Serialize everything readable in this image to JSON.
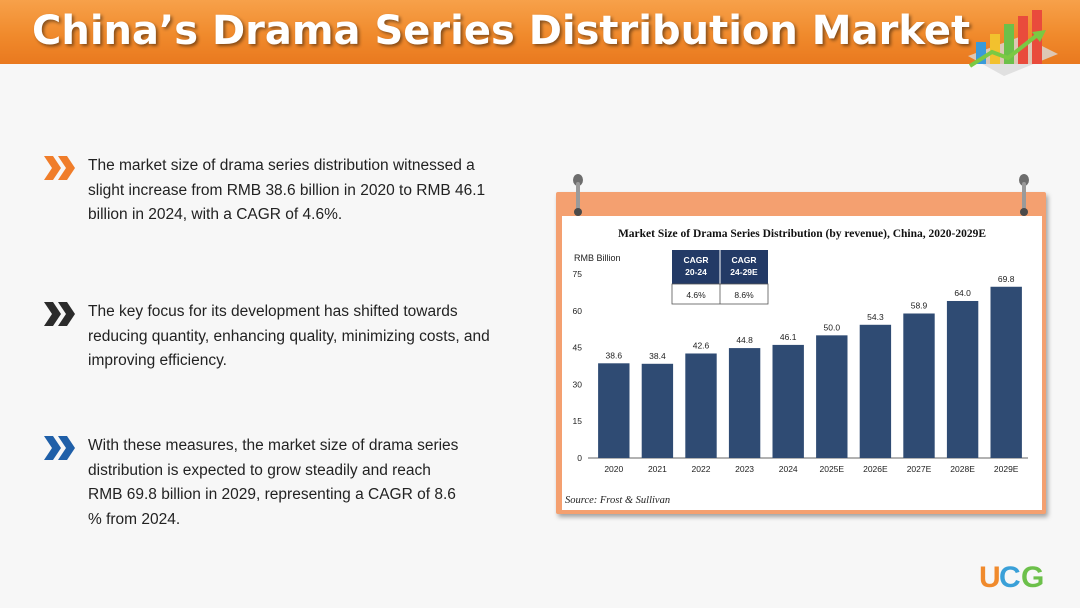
{
  "page": {
    "title": "China’s Drama Series Distribution Market",
    "bullets": [
      "The market size of drama series distribution witnessed a slight increase from RMB 38.6 billion in 2020 to RMB 46.1 billion in 2024, with a CAGR of 4.6%.",
      "The key focus for its development has shifted towards reducing quantity, enhancing quality, minimizing costs, and improving efficiency.",
      "With these measures, the market size of drama series distribution is expected to grow steadily and reach RMB 69.8 billion in 2029, representing a CAGR of 8.6 % from 2024."
    ],
    "bullet_colors": [
      "#f07d2a",
      "#2b2b2b",
      "#1f5fa8"
    ],
    "header_color": "#f08a2c",
    "logo_letters": [
      "U",
      "C",
      "G"
    ]
  },
  "chart_data": {
    "type": "bar",
    "title": "Market Size of Drama Series Distribution (by revenue), China, 2020-2029E",
    "ylabel": "RMB Billion",
    "categories": [
      "2020",
      "2021",
      "2022",
      "2023",
      "2024",
      "2025E",
      "2026E",
      "2027E",
      "2028E",
      "2029E"
    ],
    "values": [
      38.6,
      38.4,
      42.6,
      44.8,
      46.1,
      50.0,
      54.3,
      58.9,
      64.0,
      69.8
    ],
    "value_labels": [
      "38.6",
      "38.4",
      "42.6",
      "44.8",
      "46.1",
      "50.0",
      "54.3",
      "58.9",
      "64.0",
      "69.8"
    ],
    "ylim": [
      0,
      75
    ],
    "yticks": [
      0,
      15,
      30,
      45,
      60,
      75
    ],
    "grid": false,
    "bar_color": "#2f4b73",
    "cagr_table": {
      "headers": [
        "CAGR\n20-24",
        "CAGR\n24-29E"
      ],
      "values": [
        "4.6%",
        "8.6%"
      ]
    },
    "source": "Source: Frost & Sullivan"
  }
}
